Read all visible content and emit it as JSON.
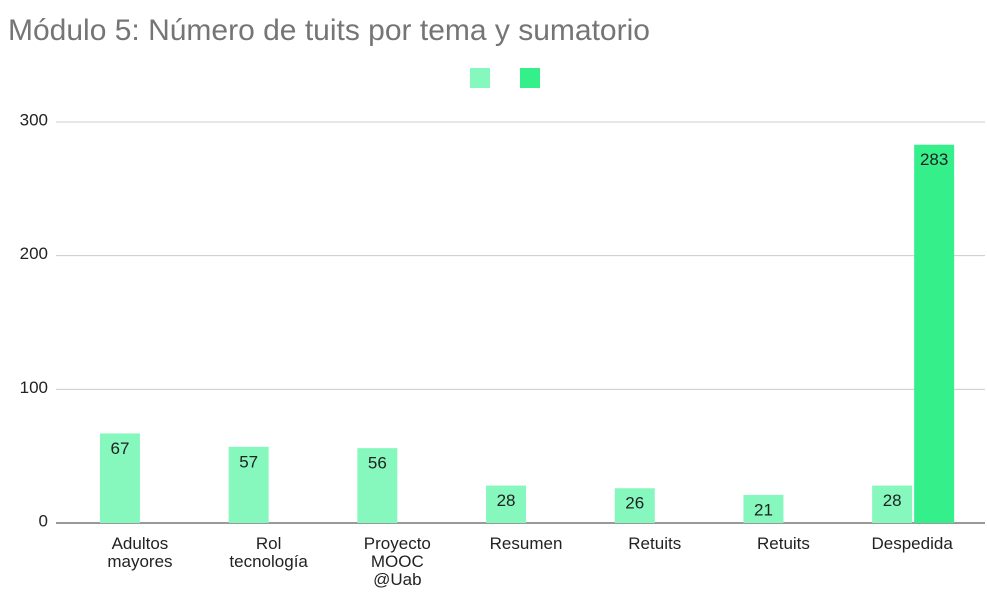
{
  "chart_data": {
    "type": "bar",
    "title": "Módulo 5: Número de tuits por tema y sumatorio",
    "categories": [
      "Adultos mayores",
      "Rol tecnología",
      "Proyecto MOOC @Uab",
      "Resumen",
      "Retuits",
      "Retuits",
      "Despedida"
    ],
    "series": [
      {
        "color": "#86f7bd",
        "values": [
          67,
          57,
          56,
          28,
          26,
          21,
          28
        ]
      },
      {
        "color": "#35ef8a",
        "values": [
          null,
          null,
          null,
          null,
          null,
          null,
          283
        ]
      }
    ],
    "ylim": [
      0,
      300
    ],
    "yticks": [
      0,
      100,
      200,
      300
    ],
    "grid": true,
    "legend": "top",
    "data_labels": true
  }
}
